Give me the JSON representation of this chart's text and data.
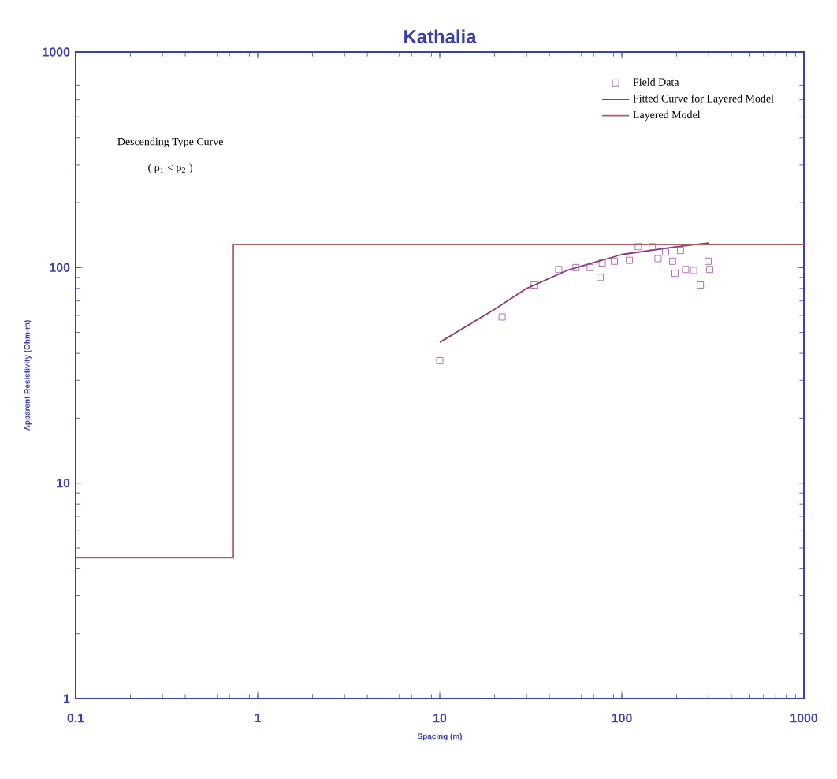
{
  "chart_data": {
    "type": "scatter",
    "title": "Kathalia",
    "xlabel": "Spacing (m)",
    "ylabel": "Apparent Resistivity (Ohm-m)",
    "log": "xy",
    "xlim": [
      0.1,
      1000
    ],
    "ylim": [
      1,
      1000
    ],
    "xticks": [
      0.1,
      1,
      10,
      100,
      1000
    ],
    "yticks": [
      1,
      10,
      100,
      1000
    ],
    "grid": false,
    "legend": "top right",
    "annotations": [
      "Descending Type Curve",
      "( ρ$_{1}$ < ρ$_{2}$ )"
    ],
    "series": [
      {
        "name": "Field Data",
        "marker": "square",
        "color": "#9a4fa8",
        "x": [
          10,
          22,
          33,
          45,
          56,
          67,
          76,
          78,
          91,
          110,
          123,
          147,
          158,
          174,
          190,
          196,
          210,
          224,
          248,
          270,
          298,
          304
        ],
        "values": [
          37,
          59,
          83,
          98,
          100,
          100,
          90,
          105,
          107,
          108,
          125,
          125,
          110,
          118,
          107,
          94,
          120,
          98,
          97,
          83,
          107,
          98
        ]
      },
      {
        "name": "Fitted Curve for Layered Model",
        "type": "line",
        "marker": "none",
        "color": "#8b3a7a",
        "x": [
          10,
          20,
          30,
          50,
          100,
          200,
          300
        ],
        "values": [
          45,
          64,
          80,
          97,
          115,
          125,
          130
        ]
      },
      {
        "name": "Layered Model",
        "type": "line",
        "marker": "none",
        "color": "#b06060",
        "x": [
          0.1,
          0.735,
          0.735,
          1000
        ],
        "values": [
          4.5,
          4.5,
          128,
          128
        ]
      }
    ]
  }
}
